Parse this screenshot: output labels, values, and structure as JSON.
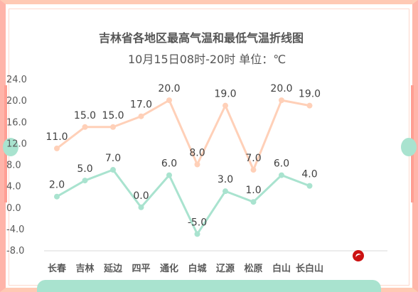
{
  "colors": {
    "high_line": "#ffd0b8",
    "low_line": "#a9e3cf",
    "frame": "#ffb4a9",
    "axis_text": "#595959"
  },
  "chart_data": {
    "type": "line",
    "title": "吉林省各地区最高气温和最低气温折线图",
    "subtitle": "10月15日08时-20时    单位：℃",
    "categories": [
      "长春",
      "吉林",
      "延边",
      "四平",
      "通化",
      "白城",
      "辽源",
      "松原",
      "白山",
      "长白山"
    ],
    "series": [
      {
        "values": [
          11.0,
          15.0,
          15.0,
          17.0,
          20.0,
          8.0,
          19.0,
          7.0,
          20.0,
          19.0
        ],
        "color": "#ffd0b8"
      },
      {
        "values": [
          2.0,
          5.0,
          7.0,
          0.0,
          6.0,
          -5.0,
          3.0,
          1.0,
          6.0,
          4.0
        ],
        "color": "#a9e3cf"
      }
    ],
    "yticks": [
      "24.0",
      "20.0",
      "16.0",
      "12.0",
      "8.0",
      "4.0",
      "0.0",
      "-4.0",
      "-8.0"
    ],
    "ylim": [
      -8,
      24
    ],
    "grid": false,
    "legend": "none"
  }
}
